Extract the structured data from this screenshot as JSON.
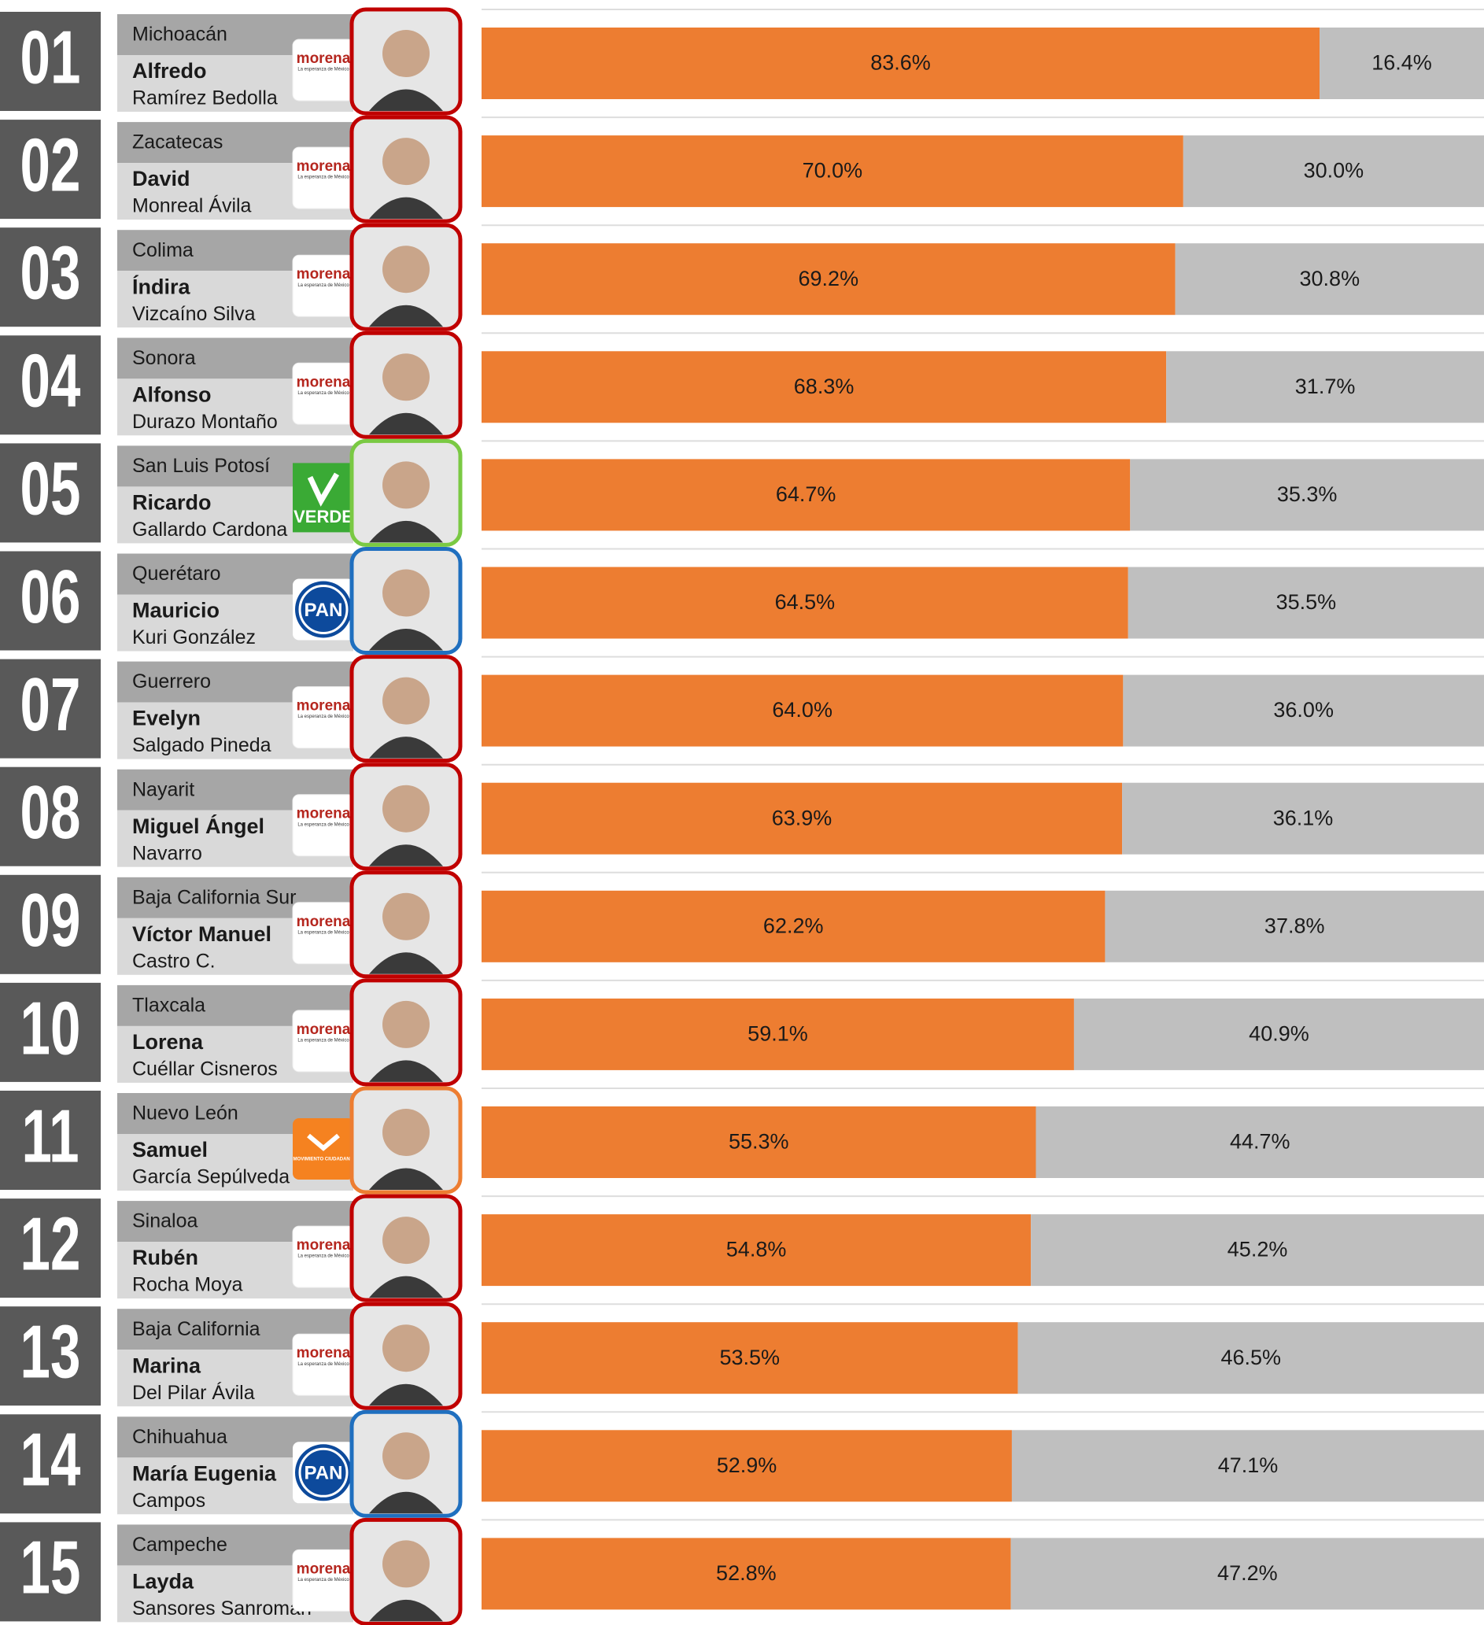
{
  "chart_data": {
    "type": "bar",
    "orientation": "horizontal",
    "stacked": true,
    "xlim": [
      0,
      100
    ],
    "categories": [
      "Michoacán",
      "Zacatecas",
      "Colima",
      "Sonora",
      "San Luis Potosí",
      "Querétaro",
      "Guerrero",
      "Nayarit",
      "Baja California Sur",
      "Tlaxcala",
      "Nuevo León",
      "Sinaloa",
      "Baja California",
      "Chihuahua",
      "Campeche"
    ],
    "candidates": [
      {
        "rank": "01",
        "first": "Alfredo",
        "last": "Ramírez Bedolla",
        "party": "morena",
        "tagline": "La esperanza de México",
        "party_color": "#b5261e",
        "color": "#c00000"
      },
      {
        "rank": "02",
        "first": "David",
        "last": "Monreal Ávila",
        "party": "morena",
        "tagline": "La esperanza de México",
        "party_color": "#b5261e",
        "color": "#c00000"
      },
      {
        "rank": "03",
        "first": "Índira",
        "last": "Vizcaíno Silva",
        "party": "morena",
        "tagline": "La esperanza de México",
        "party_color": "#b5261e",
        "color": "#c00000"
      },
      {
        "rank": "04",
        "first": "Alfonso",
        "last": "Durazo Montaño",
        "party": "morena",
        "tagline": "La esperanza de México",
        "party_color": "#b5261e",
        "color": "#c00000"
      },
      {
        "rank": "05",
        "first": "Ricardo",
        "last": "Gallardo Cardona",
        "party": "VERDE",
        "party_color": "#3aaa35",
        "color": "#7ac943"
      },
      {
        "rank": "06",
        "first": "Mauricio",
        "last": "Kuri González",
        "party": "PAN",
        "party_color": "#0d4a9c",
        "color": "#1f6fbf"
      },
      {
        "rank": "07",
        "first": "Evelyn",
        "last": "Salgado Pineda",
        "party": "morena",
        "tagline": "La esperanza de México",
        "party_color": "#b5261e",
        "color": "#c00000"
      },
      {
        "rank": "08",
        "first": "Miguel Ángel",
        "last": "Navarro",
        "party": "morena",
        "tagline": "La esperanza de México",
        "party_color": "#b5261e",
        "color": "#c00000"
      },
      {
        "rank": "09",
        "first": "Víctor Manuel",
        "last": "Castro C.",
        "party": "morena",
        "tagline": "La esperanza de México",
        "party_color": "#b5261e",
        "color": "#c00000"
      },
      {
        "rank": "10",
        "first": "Lorena",
        "last": "Cuéllar Cisneros",
        "party": "morena",
        "tagline": "La esperanza de México",
        "party_color": "#b5261e",
        "color": "#c00000"
      },
      {
        "rank": "11",
        "first": "Samuel",
        "last": "García Sepúlveda",
        "party": "MOVIMIENTO CIUDADANO",
        "party_color": "#f58220",
        "color": "#ed7d31"
      },
      {
        "rank": "12",
        "first": "Rubén",
        "last": "Rocha Moya",
        "party": "morena",
        "tagline": "La esperanza de México",
        "party_color": "#b5261e",
        "color": "#c00000"
      },
      {
        "rank": "13",
        "first": "Marina",
        "last": "Del Pilar Ávila",
        "party": "morena",
        "tagline": "La esperanza de México",
        "party_color": "#b5261e",
        "color": "#c00000"
      },
      {
        "rank": "14",
        "first": "María Eugenia",
        "last": "Campos",
        "party": "PAN",
        "party_color": "#0d4a9c",
        "color": "#1f6fbf"
      },
      {
        "rank": "15",
        "first": "Layda",
        "last": "Sansores Sanromán",
        "party": "morena",
        "tagline": "La esperanza de México",
        "party_color": "#b5261e",
        "color": "#c00000"
      }
    ],
    "series": [
      {
        "color": "#ed7d31",
        "values": [
          83.6,
          70.0,
          69.2,
          68.3,
          64.7,
          64.5,
          64.0,
          63.9,
          62.2,
          59.1,
          55.3,
          54.8,
          53.5,
          52.9,
          52.8
        ],
        "value_labels": [
          "83.6%",
          "70.0%",
          "69.2%",
          "68.3%",
          "64.7%",
          "64.5%",
          "64.0%",
          "63.9%",
          "62.2%",
          "59.1%",
          "55.3%",
          "54.8%",
          "53.5%",
          "52.9%",
          "52.8%"
        ]
      },
      {
        "color": "#bfbfbf",
        "values": [
          16.4,
          30.0,
          30.8,
          31.7,
          35.3,
          35.5,
          36.0,
          36.1,
          37.8,
          40.9,
          44.7,
          45.2,
          46.5,
          47.1,
          47.2
        ],
        "value_labels": [
          "16.4%",
          "30.0%",
          "30.8%",
          "31.7%",
          "35.3%",
          "35.5%",
          "36.0%",
          "36.1%",
          "37.8%",
          "40.9%",
          "44.7%",
          "45.2%",
          "46.5%",
          "47.1%",
          "47.2%"
        ]
      }
    ]
  }
}
